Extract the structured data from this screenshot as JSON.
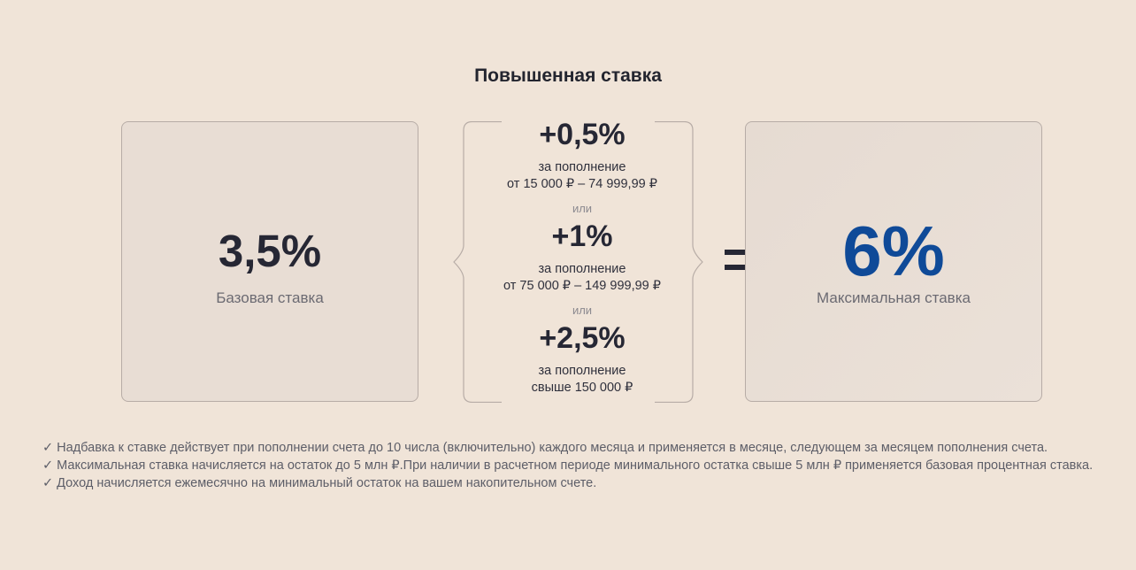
{
  "title": "Повышенная ставка",
  "base": {
    "value": "3,5%",
    "label": "Базовая ставка"
  },
  "bonuses": [
    {
      "value": "+0,5%",
      "line1": "за пополнение",
      "line2": "от 15 000 ₽ – 74 999,99 ₽"
    },
    {
      "value": "+1%",
      "line1": "за пополнение",
      "line2": "от 75 000 ₽ – 149 999,99 ₽"
    },
    {
      "value": "+2,5%",
      "line1": "за пополнение",
      "line2": "свыше 150 000 ₽"
    }
  ],
  "or_label": "или",
  "max": {
    "value": "6%",
    "label": "Максимальная ставка",
    "color": "#0f4a98"
  },
  "notes": [
    "✓ Надбавка к ставке действует при пополнении счета до 10 числа (включительно) каждого месяца и применяется в месяце, следующем за месяцем пополнения счета.",
    "✓ Максимальная ставка начисляется на остаток до 5 млн ₽.При наличии в расчетном периоде минимального остатка свыше 5 млн ₽ применяется базовая процентная ставка.",
    "✓ Доход начисляется ежемесячно на минимальный остаток на вашем накопительном счете."
  ]
}
